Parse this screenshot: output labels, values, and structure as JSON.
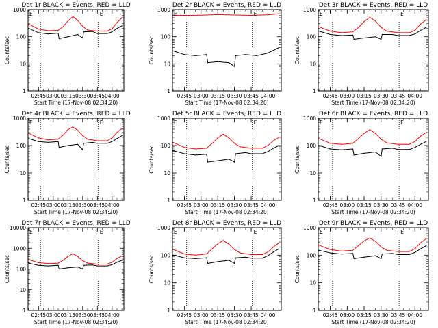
{
  "figure": {
    "xlabel": "Start Time (17-Nov-08 02:34:20)",
    "ylabel": "Counts/sec"
  },
  "chart_data": [
    {
      "type": "line",
      "title": "Det 1r BLACK = Events, RED = LLD",
      "xlabel": "Start Time (17-Nov-08 02:34:20)",
      "ylabel": "Counts/sec",
      "yscale": "log",
      "ylim": [
        1,
        1000
      ],
      "yticks": [
        "1",
        "10",
        "100",
        "1000"
      ],
      "xlim": [
        "02:34:20",
        "04:12:00"
      ],
      "xticks": [
        "02:45",
        "03:00",
        "03:15",
        "03:30",
        "03:45",
        "04:00"
      ],
      "vlines": [
        "02:47",
        "03:46"
      ],
      "annotation": "E",
      "series": [
        {
          "color": "red",
          "x": [
            "02:35",
            "02:45",
            "02:55",
            "03:05",
            "03:10",
            "03:15",
            "03:20",
            "03:25",
            "03:30",
            "03:35",
            "03:45",
            "03:55",
            "04:00",
            "04:05",
            "04:10"
          ],
          "values": [
            290,
            190,
            165,
            170,
            230,
            380,
            550,
            400,
            240,
            175,
            160,
            160,
            195,
            330,
            500
          ]
        },
        {
          "color": "black",
          "x": [
            "02:35",
            "02:45",
            "02:55",
            "03:05",
            "03:06",
            "03:15",
            "03:25",
            "03:30",
            "03:31",
            "03:40",
            "03:45",
            "03:55",
            "04:00",
            "04:05",
            "04:10"
          ],
          "values": [
            200,
            140,
            125,
            135,
            85,
            100,
            120,
            90,
            150,
            155,
            130,
            130,
            150,
            200,
            250
          ]
        }
      ]
    },
    {
      "type": "line",
      "title": "Det 2r BLACK = Events, RED = LLD",
      "xlabel": "Start Time (17-Nov-08 02:34:20)",
      "ylabel": "Counts/sec",
      "yscale": "log",
      "ylim": [
        1,
        1000
      ],
      "yticks": [
        "1",
        "10",
        "100",
        "1000"
      ],
      "xlim": [
        "02:34:20",
        "04:12:00"
      ],
      "xticks": [
        "02:45",
        "03:00",
        "03:15",
        "03:30",
        "03:45",
        "04:00"
      ],
      "vlines": [
        "02:47",
        "03:46"
      ],
      "annotation": "E",
      "series": [
        {
          "color": "red",
          "x": [
            "02:35",
            "02:45",
            "03:00",
            "03:15",
            "03:30",
            "03:45",
            "04:00",
            "04:10"
          ],
          "values": [
            620,
            610,
            620,
            650,
            630,
            610,
            640,
            700
          ]
        },
        {
          "color": "black",
          "x": [
            "02:35",
            "02:45",
            "02:55",
            "03:05",
            "03:06",
            "03:15",
            "03:25",
            "03:30",
            "03:31",
            "03:40",
            "03:50",
            "04:00",
            "04:10"
          ],
          "values": [
            30,
            22,
            20,
            22,
            11,
            12,
            11,
            8,
            20,
            22,
            20,
            25,
            40
          ]
        }
      ]
    },
    {
      "type": "line",
      "title": "Det 3r BLACK = Events, RED = LLD",
      "xlabel": "Start Time (17-Nov-08 02:34:20)",
      "ylabel": "Counts/sec",
      "yscale": "log",
      "ylim": [
        1,
        1000
      ],
      "yticks": [
        "1",
        "10",
        "100",
        "1000"
      ],
      "xlim": [
        "02:34:20",
        "04:12:00"
      ],
      "xticks": [
        "02:45",
        "03:00",
        "03:15",
        "03:30",
        "03:45",
        "04:00"
      ],
      "vlines": [
        "02:47",
        "03:46"
      ],
      "annotation": "E",
      "series": [
        {
          "color": "red",
          "x": [
            "02:35",
            "02:45",
            "02:55",
            "03:05",
            "03:10",
            "03:15",
            "03:20",
            "03:25",
            "03:30",
            "03:35",
            "03:45",
            "03:55",
            "04:00",
            "04:05",
            "04:10"
          ],
          "values": [
            230,
            160,
            140,
            150,
            220,
            360,
            520,
            380,
            220,
            160,
            140,
            140,
            170,
            290,
            420
          ]
        },
        {
          "color": "black",
          "x": [
            "02:35",
            "02:45",
            "02:55",
            "03:05",
            "03:06",
            "03:15",
            "03:25",
            "03:30",
            "03:31",
            "03:40",
            "03:45",
            "03:55",
            "04:00",
            "04:05",
            "04:10"
          ],
          "values": [
            160,
            120,
            110,
            115,
            80,
            90,
            100,
            80,
            120,
            120,
            110,
            110,
            125,
            170,
            220
          ]
        }
      ]
    },
    {
      "type": "line",
      "title": "Det 4r BLACK = Events, RED = LLD",
      "xlabel": "Start Time (17-Nov-08 02:34:20)",
      "ylabel": "Counts/sec",
      "yscale": "log",
      "ylim": [
        1,
        1000
      ],
      "yticks": [
        "1",
        "10",
        "100",
        "1000"
      ],
      "xlim": [
        "02:34:20",
        "04:12:00"
      ],
      "xticks": [
        "02:45",
        "03:00",
        "03:15",
        "03:30",
        "03:45",
        "04:00"
      ],
      "vlines": [
        "02:47",
        "03:46"
      ],
      "annotation": "E",
      "series": [
        {
          "color": "red",
          "x": [
            "02:35",
            "02:45",
            "02:55",
            "03:05",
            "03:10",
            "03:15",
            "03:20",
            "03:25",
            "03:30",
            "03:35",
            "03:45",
            "03:55",
            "04:00",
            "04:05",
            "04:10"
          ],
          "values": [
            280,
            190,
            160,
            170,
            240,
            380,
            480,
            360,
            230,
            170,
            150,
            150,
            190,
            300,
            420
          ]
        },
        {
          "color": "black",
          "x": [
            "02:35",
            "02:45",
            "02:55",
            "03:05",
            "03:06",
            "03:15",
            "03:25",
            "03:30",
            "03:31",
            "03:40",
            "03:45",
            "03:55",
            "04:00",
            "04:05",
            "04:10"
          ],
          "values": [
            180,
            140,
            130,
            140,
            85,
            100,
            110,
            70,
            120,
            130,
            120,
            120,
            140,
            180,
            230
          ]
        }
      ]
    },
    {
      "type": "line",
      "title": "Det 5r BLACK = Events, RED = LLD",
      "xlabel": "Start Time (17-Nov-08 02:34:20)",
      "ylabel": "Counts/sec",
      "yscale": "log",
      "ylim": [
        1,
        1000
      ],
      "yticks": [
        "1",
        "10",
        "100",
        "1000"
      ],
      "xlim": [
        "02:34:20",
        "04:12:00"
      ],
      "xticks": [
        "02:45",
        "03:00",
        "03:15",
        "03:30",
        "03:45",
        "04:00"
      ],
      "vlines": [
        "02:47",
        "03:46"
      ],
      "annotation": "E",
      "series": [
        {
          "color": "red",
          "x": [
            "02:35",
            "02:45",
            "02:55",
            "03:05",
            "03:10",
            "03:15",
            "03:20",
            "03:25",
            "03:30",
            "03:35",
            "03:45",
            "03:55",
            "04:00",
            "04:05",
            "04:10"
          ],
          "values": [
            130,
            85,
            75,
            80,
            120,
            190,
            260,
            190,
            120,
            90,
            80,
            80,
            100,
            150,
            200
          ]
        },
        {
          "color": "black",
          "x": [
            "02:35",
            "02:45",
            "02:55",
            "03:05",
            "03:06",
            "03:15",
            "03:25",
            "03:30",
            "03:31",
            "03:40",
            "03:45",
            "03:55",
            "04:00",
            "04:05",
            "04:10"
          ],
          "values": [
            65,
            50,
            45,
            48,
            25,
            28,
            32,
            25,
            50,
            55,
            50,
            50,
            60,
            80,
            100
          ]
        }
      ]
    },
    {
      "type": "line",
      "title": "Det 6r BLACK = Events, RED = LLD",
      "xlabel": "Start Time (17-Nov-08 02:34:20)",
      "ylabel": "Counts/sec",
      "yscale": "log",
      "ylim": [
        1,
        1000
      ],
      "yticks": [
        "1",
        "10",
        "100",
        "1000"
      ],
      "xlim": [
        "02:34:20",
        "04:12:00"
      ],
      "xticks": [
        "02:45",
        "03:00",
        "03:15",
        "03:30",
        "03:45",
        "04:00"
      ],
      "vlines": [
        "02:47",
        "03:46"
      ],
      "annotation": "E",
      "series": [
        {
          "color": "red",
          "x": [
            "02:35",
            "02:45",
            "02:55",
            "03:05",
            "03:10",
            "03:15",
            "03:20",
            "03:25",
            "03:30",
            "03:35",
            "03:45",
            "03:55",
            "04:00",
            "04:05",
            "04:10"
          ],
          "values": [
            180,
            120,
            110,
            120,
            180,
            280,
            380,
            280,
            170,
            125,
            110,
            110,
            140,
            220,
            300
          ]
        },
        {
          "color": "black",
          "x": [
            "02:35",
            "02:45",
            "02:55",
            "03:05",
            "03:06",
            "03:15",
            "03:25",
            "03:30",
            "03:31",
            "03:40",
            "03:45",
            "03:55",
            "04:00",
            "04:05",
            "04:10"
          ],
          "values": [
            100,
            75,
            70,
            75,
            45,
            52,
            58,
            40,
            75,
            80,
            72,
            72,
            85,
            110,
            140
          ]
        }
      ]
    },
    {
      "type": "line",
      "title": "Det 7r BLACK = Events, RED = LLD",
      "xlabel": "Start Time (17-Nov-08 02:34:20)",
      "ylabel": "Counts/sec",
      "yscale": "log",
      "ylim": [
        1,
        10000
      ],
      "yticks": [
        "1",
        "10",
        "100",
        "1000",
        "10000"
      ],
      "xlim": [
        "02:34:20",
        "04:12:00"
      ],
      "xticks": [
        "02:45",
        "03:00",
        "03:15",
        "03:30",
        "03:45",
        "04:00"
      ],
      "vlines": [
        "02:47",
        "03:46"
      ],
      "annotation": "E",
      "series": [
        {
          "color": "red",
          "x": [
            "02:35",
            "02:45",
            "02:55",
            "03:05",
            "03:10",
            "03:15",
            "03:20",
            "03:25",
            "03:30",
            "03:35",
            "03:45",
            "03:55",
            "04:00",
            "04:05",
            "04:10"
          ],
          "values": [
            280,
            200,
            180,
            190,
            260,
            400,
            540,
            400,
            250,
            190,
            170,
            170,
            210,
            320,
            420
          ]
        },
        {
          "color": "black",
          "x": [
            "02:35",
            "02:45",
            "02:55",
            "03:05",
            "03:06",
            "03:15",
            "03:25",
            "03:30",
            "03:31",
            "03:40",
            "03:45",
            "03:55",
            "04:00",
            "04:05",
            "04:10"
          ],
          "values": [
            190,
            150,
            140,
            150,
            100,
            115,
            125,
            100,
            150,
            155,
            140,
            140,
            160,
            210,
            260
          ]
        }
      ]
    },
    {
      "type": "line",
      "title": "Det 8r BLACK = Events, RED = LLD",
      "xlabel": "Start Time (17-Nov-08 02:34:20)",
      "ylabel": "Counts/sec",
      "yscale": "log",
      "ylim": [
        1,
        1000
      ],
      "yticks": [
        "1",
        "10",
        "100",
        "1000"
      ],
      "xlim": [
        "02:34:20",
        "04:12:00"
      ],
      "xticks": [
        "02:45",
        "03:00",
        "03:15",
        "03:30",
        "03:45",
        "04:00"
      ],
      "vlines": [
        "02:47",
        "03:46"
      ],
      "annotation": "E",
      "series": [
        {
          "color": "red",
          "x": [
            "02:35",
            "02:45",
            "02:55",
            "03:05",
            "03:10",
            "03:15",
            "03:20",
            "03:25",
            "03:30",
            "03:35",
            "03:45",
            "03:55",
            "04:00",
            "04:05",
            "04:10"
          ],
          "values": [
            160,
            110,
            100,
            110,
            170,
            260,
            340,
            250,
            160,
            120,
            105,
            105,
            130,
            200,
            280
          ]
        },
        {
          "color": "black",
          "x": [
            "02:35",
            "02:45",
            "02:55",
            "03:05",
            "03:06",
            "03:15",
            "03:25",
            "03:30",
            "03:31",
            "03:40",
            "03:45",
            "03:55",
            "04:00",
            "04:05",
            "04:10"
          ],
          "values": [
            100,
            80,
            75,
            80,
            50,
            58,
            65,
            50,
            80,
            85,
            78,
            78,
            95,
            130,
            170
          ]
        }
      ]
    },
    {
      "type": "line",
      "title": "Det 9r BLACK = Events, RED = LLD",
      "xlabel": "Start Time (17-Nov-08 02:34:20)",
      "ylabel": "Counts/sec",
      "yscale": "log",
      "ylim": [
        1,
        1000
      ],
      "yticks": [
        "1",
        "10",
        "100",
        "1000"
      ],
      "xlim": [
        "02:34:20",
        "04:12:00"
      ],
      "xticks": [
        "02:45",
        "03:00",
        "03:15",
        "03:30",
        "03:45",
        "04:00"
      ],
      "vlines": [
        "02:47",
        "03:46"
      ],
      "annotation": "E",
      "series": [
        {
          "color": "red",
          "x": [
            "02:35",
            "02:45",
            "02:55",
            "03:05",
            "03:10",
            "03:15",
            "03:20",
            "03:25",
            "03:30",
            "03:35",
            "03:45",
            "03:55",
            "04:00",
            "04:05",
            "04:10"
          ],
          "values": [
            230,
            160,
            140,
            150,
            220,
            330,
            420,
            320,
            200,
            150,
            135,
            135,
            170,
            280,
            400
          ]
        },
        {
          "color": "black",
          "x": [
            "02:35",
            "02:45",
            "02:55",
            "03:05",
            "03:06",
            "03:15",
            "03:25",
            "03:30",
            "03:31",
            "03:40",
            "03:45",
            "03:55",
            "04:00",
            "04:05",
            "04:10"
          ],
          "values": [
            150,
            120,
            110,
            115,
            75,
            85,
            95,
            75,
            110,
            115,
            105,
            105,
            125,
            170,
            220
          ]
        }
      ]
    }
  ]
}
